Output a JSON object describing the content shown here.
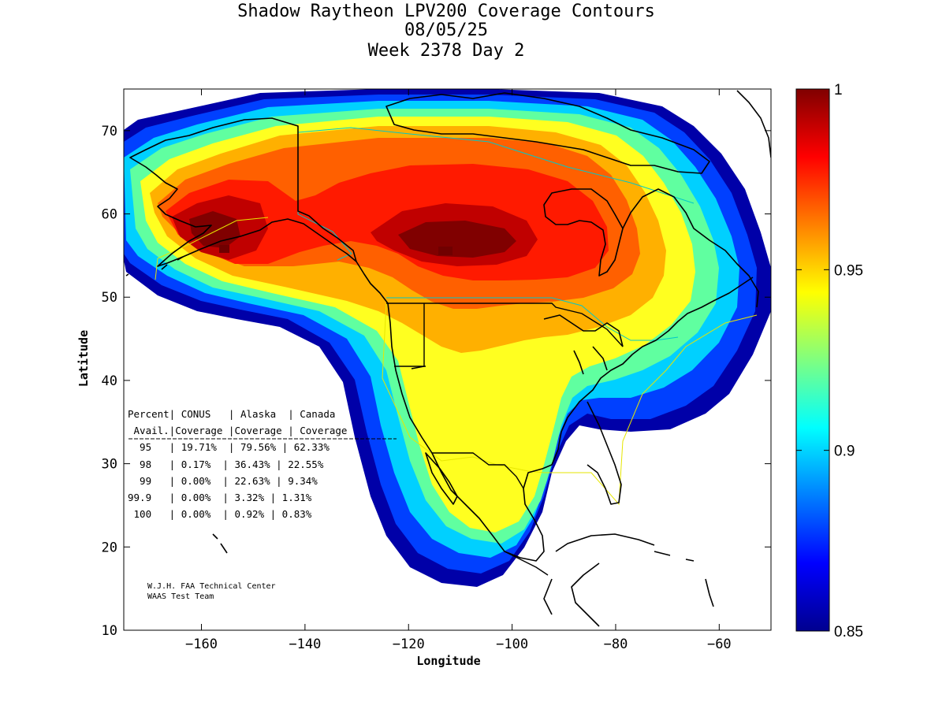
{
  "title": {
    "line1": "Shadow Raytheon LPV200 Coverage Contours",
    "line2": "08/05/25",
    "line3": "Week 2378 Day 2"
  },
  "axes": {
    "xlabel": "Longitude",
    "ylabel": "Latitude",
    "xlim": [
      -175,
      -50
    ],
    "ylim": [
      10,
      75
    ],
    "xticks": [
      -160,
      -140,
      -120,
      -100,
      -80,
      -60
    ],
    "yticks": [
      10,
      20,
      30,
      40,
      50,
      60,
      70
    ]
  },
  "colorbar": {
    "min": 0.85,
    "max": 1,
    "ticks": [
      "1",
      "0.95",
      "0.9",
      "0.85"
    ],
    "tick_values": [
      1,
      0.95,
      0.9,
      0.85
    ]
  },
  "coverage_table": {
    "header1": "Percent| CONUS   | Alaska  | Canada",
    "header2": " Avail.|Coverage |Coverage | Coverage",
    "rows": [
      "  95   | 19.71%  | 79.56% | 62.33%",
      "  98   | 0.17%  | 36.43% | 22.55%",
      "  99   | 0.00%  | 22.63% | 9.34%",
      "99.9   | 0.00%  | 3.32% | 1.31%",
      " 100   | 0.00%  | 0.92% | 0.83%"
    ]
  },
  "credit": {
    "line1": "W.J.H. FAA Technical Center",
    "line2": "WAAS Test Team"
  },
  "colors": {
    "jet_dark_red": "#800000",
    "jet_red": "#ff0000",
    "jet_yellow": "#ffff00",
    "jet_cyan": "#00ffff",
    "jet_blue": "#0000ff",
    "jet_dark_blue": "#00008f",
    "fir_boundary_cyan": "#00c8c8",
    "fir_boundary_yellow": "#e6e600"
  },
  "chart_data": {
    "type": "heatmap",
    "title": "Shadow Raytheon LPV200 Coverage Contours",
    "xlabel": "Longitude",
    "ylabel": "Latitude",
    "xlim": [
      -175,
      -50
    ],
    "ylim": [
      10,
      75
    ],
    "value_range": [
      0.85,
      1
    ],
    "peaks": [
      {
        "lon": -155,
        "lat": 57,
        "value": 1.0
      },
      {
        "lon": -112,
        "lat": 55,
        "value": 1.0
      }
    ]
  }
}
